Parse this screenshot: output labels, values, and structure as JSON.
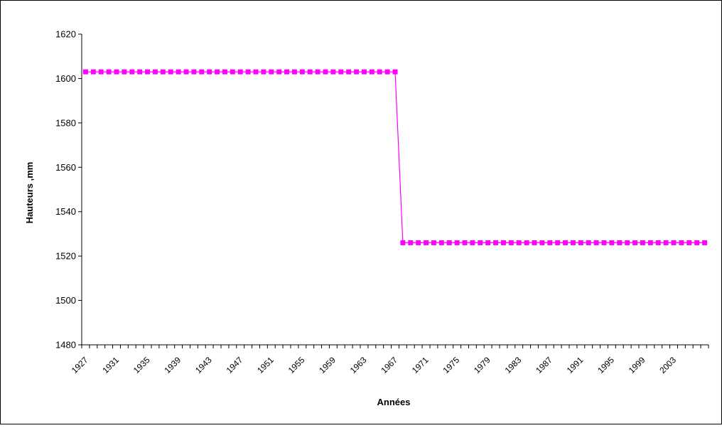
{
  "chart_data": {
    "type": "line",
    "title": "",
    "xlabel": "Années",
    "ylabel": "Hauteurs ,mm",
    "ylim": [
      1480,
      1620
    ],
    "yticks": [
      1480,
      1500,
      1520,
      1540,
      1560,
      1580,
      1600,
      1620
    ],
    "xticks": [
      "1927",
      "1931",
      "1935",
      "1939",
      "1943",
      "1947",
      "1951",
      "1955",
      "1959",
      "1963",
      "1967",
      "1971",
      "1975",
      "1979",
      "1983",
      "1987",
      "1991",
      "1995",
      "1999",
      "2003"
    ],
    "grid": false,
    "legend": "none",
    "series": [
      {
        "color": "#ff00ff",
        "marker": "square",
        "x": [
          1927,
          1928,
          1929,
          1930,
          1931,
          1932,
          1933,
          1934,
          1935,
          1936,
          1937,
          1938,
          1939,
          1940,
          1941,
          1942,
          1943,
          1944,
          1945,
          1946,
          1947,
          1948,
          1949,
          1950,
          1951,
          1952,
          1953,
          1954,
          1955,
          1956,
          1957,
          1958,
          1959,
          1960,
          1961,
          1962,
          1963,
          1964,
          1965,
          1966,
          1967,
          1968,
          1969,
          1970,
          1971,
          1972,
          1973,
          1974,
          1975,
          1976,
          1977,
          1978,
          1979,
          1980,
          1981,
          1982,
          1983,
          1984,
          1985,
          1986,
          1987,
          1988,
          1989,
          1990,
          1991,
          1992,
          1993,
          1994,
          1995,
          1996,
          1997,
          1998,
          1999,
          2000,
          2001,
          2002,
          2003,
          2004,
          2005,
          2006,
          2007
        ],
        "values": [
          1603,
          1603,
          1603,
          1603,
          1603,
          1603,
          1603,
          1603,
          1603,
          1603,
          1603,
          1603,
          1603,
          1603,
          1603,
          1603,
          1603,
          1603,
          1603,
          1603,
          1603,
          1603,
          1603,
          1603,
          1603,
          1603,
          1603,
          1603,
          1603,
          1603,
          1603,
          1603,
          1603,
          1603,
          1603,
          1603,
          1603,
          1603,
          1603,
          1603,
          1603,
          1526,
          1526,
          1526,
          1526,
          1526,
          1526,
          1526,
          1526,
          1526,
          1526,
          1526,
          1526,
          1526,
          1526,
          1526,
          1526,
          1526,
          1526,
          1526,
          1526,
          1526,
          1526,
          1526,
          1526,
          1526,
          1526,
          1526,
          1526,
          1526,
          1526,
          1526,
          1526,
          1526,
          1526,
          1526,
          1526,
          1526,
          1526,
          1526,
          1526
        ]
      }
    ]
  }
}
